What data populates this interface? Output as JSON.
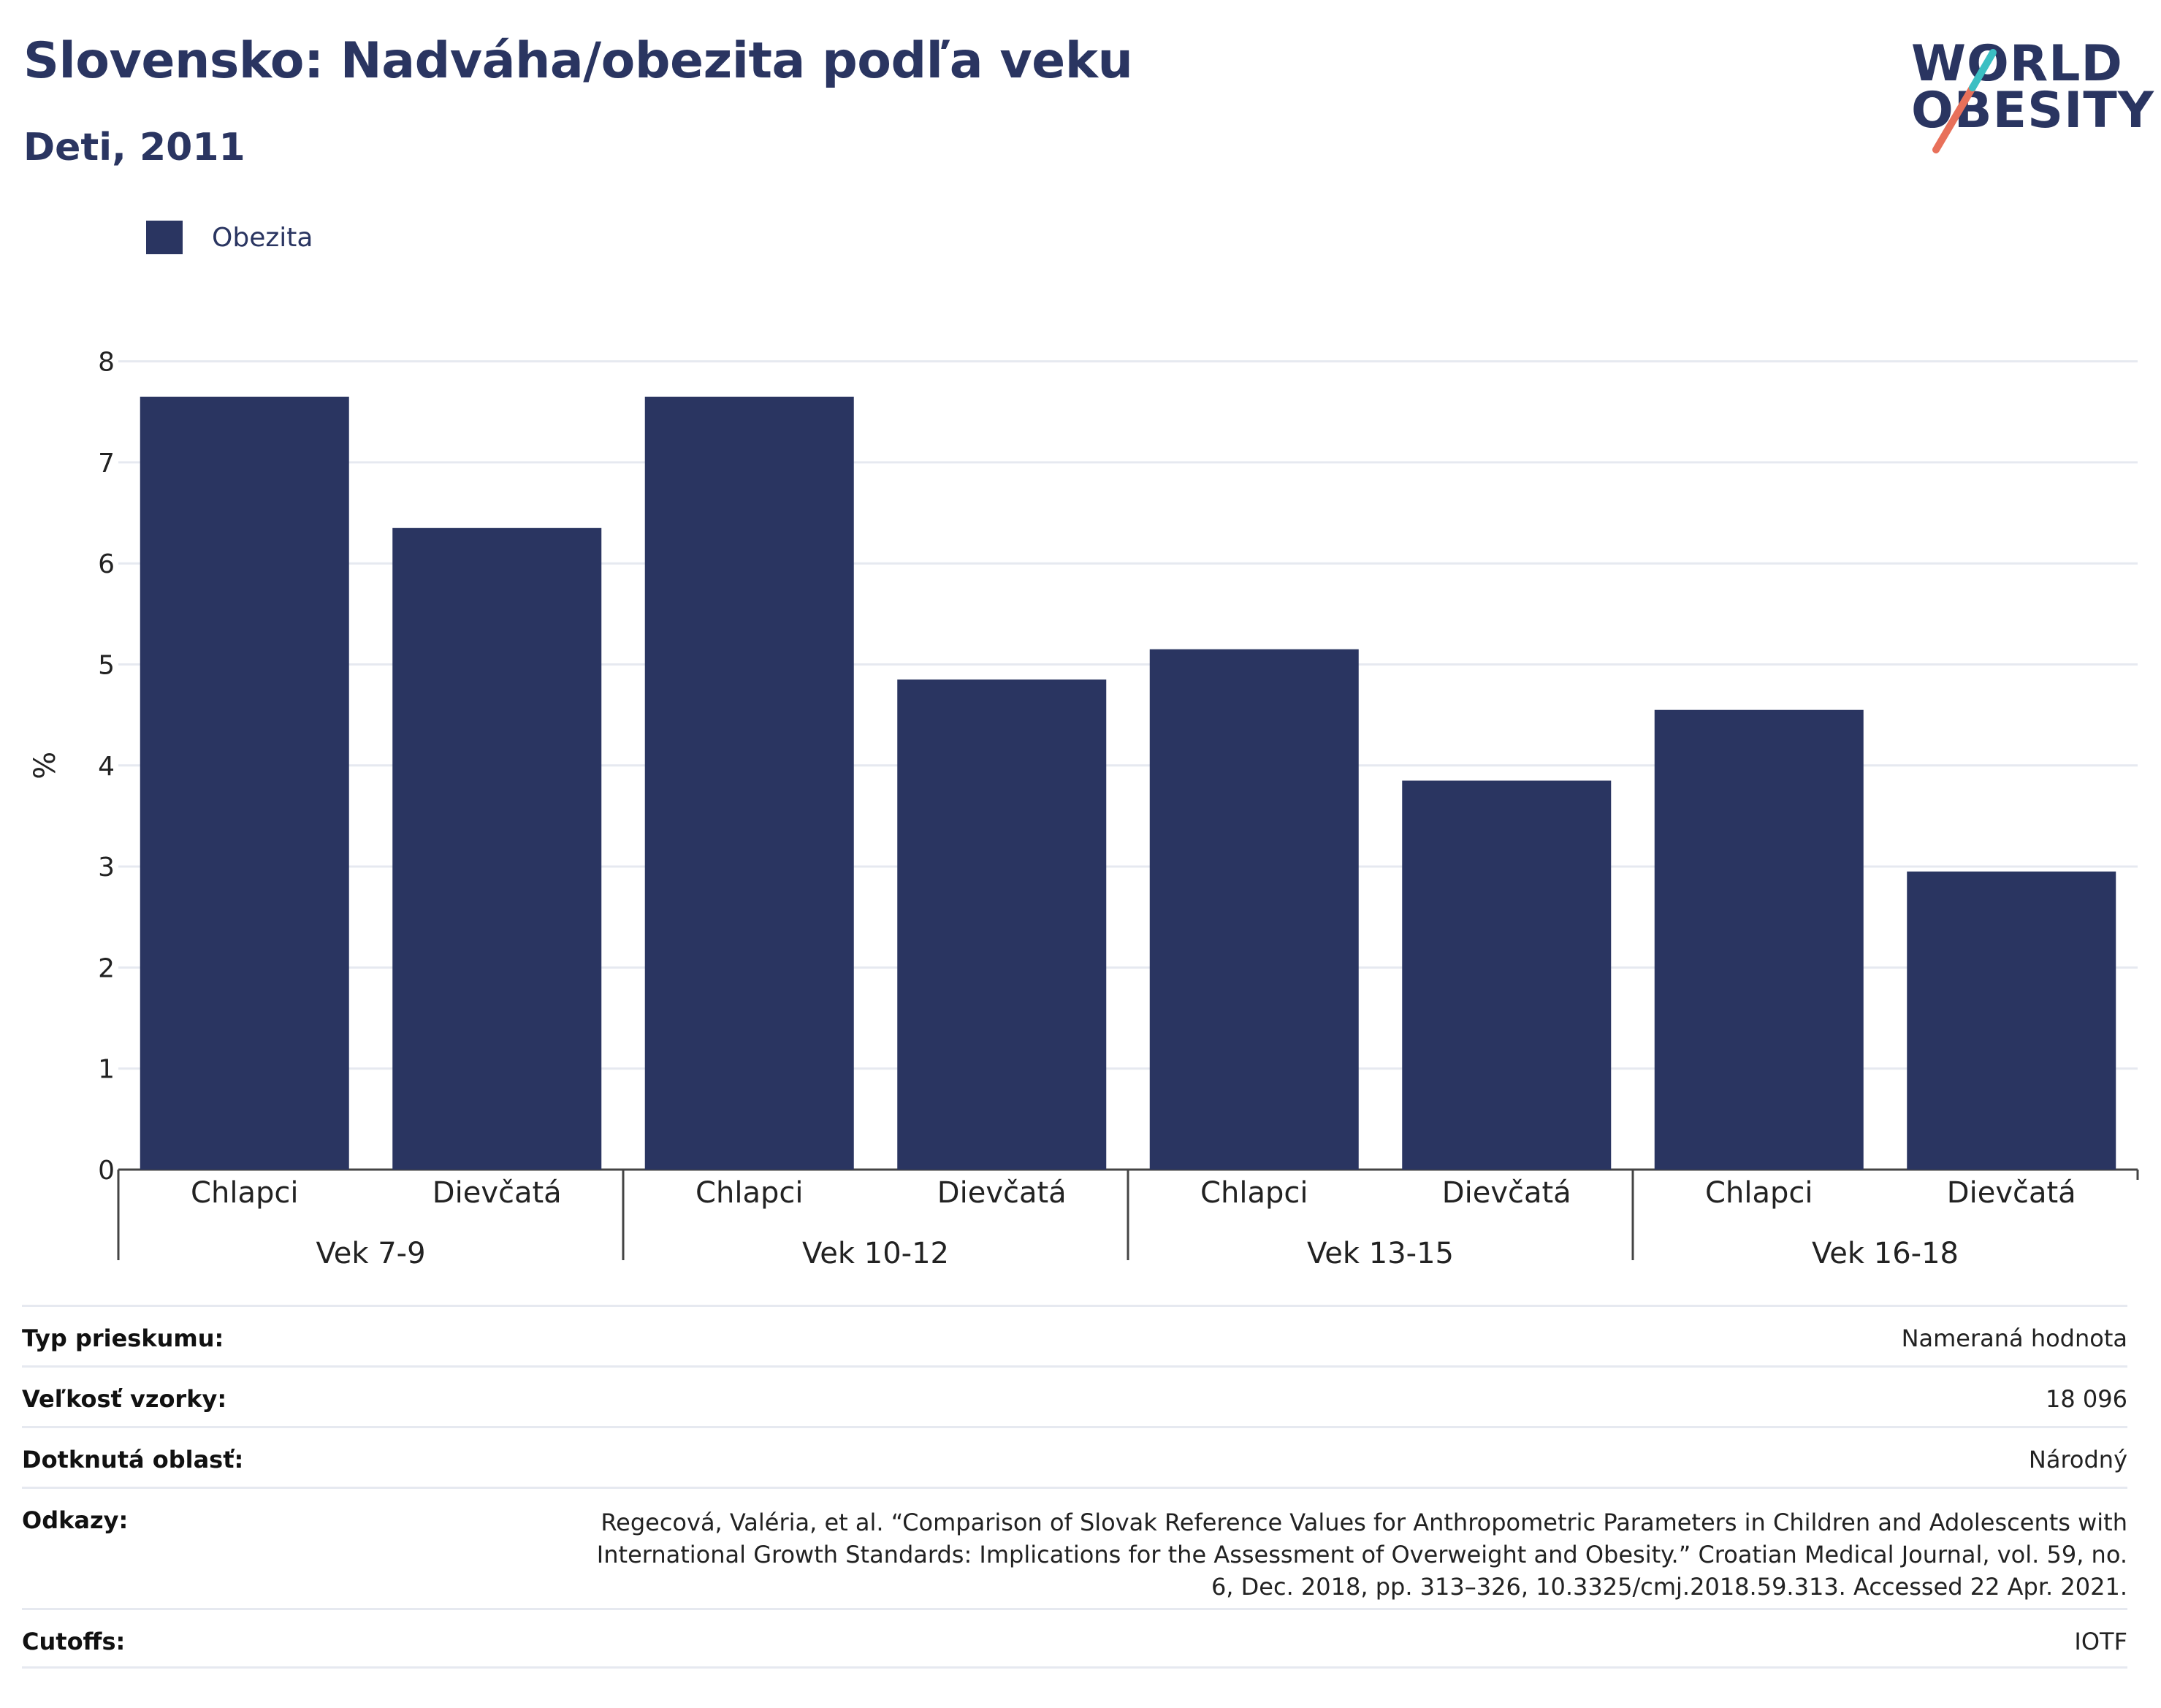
{
  "header": {
    "title": "Slovensko: Nadváha/obezita podľa veku",
    "subtitle": "Deti, 2011"
  },
  "logo": {
    "line1": "WORLD",
    "line2": "OBESITY",
    "colors": {
      "navy": "#2a3561",
      "teal": "#3bbfc3",
      "coral": "#e8705a"
    }
  },
  "legend": {
    "items": [
      {
        "label": "Obezita",
        "color": "#2a3561"
      }
    ]
  },
  "chart_data": {
    "type": "bar",
    "ylabel": "%",
    "ylim": [
      0,
      8
    ],
    "yticks": [
      0,
      1,
      2,
      3,
      4,
      5,
      6,
      7,
      8
    ],
    "grid": true,
    "legend_position": "top-left",
    "bar_color": "#2a3561",
    "groups": [
      {
        "label": "Vek 7-9",
        "categories": [
          "Chlapci",
          "Dievčatá"
        ],
        "values": [
          7.65,
          6.35
        ]
      },
      {
        "label": "Vek 10-12",
        "categories": [
          "Chlapci",
          "Dievčatá"
        ],
        "values": [
          7.65,
          4.85
        ]
      },
      {
        "label": "Vek 13-15",
        "categories": [
          "Chlapci",
          "Dievčatá"
        ],
        "values": [
          5.15,
          3.85
        ]
      },
      {
        "label": "Vek 16-18",
        "categories": [
          "Chlapci",
          "Dievčatá"
        ],
        "values": [
          4.55,
          2.95
        ]
      }
    ],
    "series": [
      {
        "name": "Obezita"
      }
    ]
  },
  "info": {
    "rows": [
      {
        "key": "Typ prieskumu:",
        "value": "Nameraná hodnota"
      },
      {
        "key": "Veľkosť vzorky:",
        "value": "18 096"
      },
      {
        "key": "Dotknutá oblasť:",
        "value": "Národný"
      },
      {
        "key": "Odkazy:",
        "value": "Regecová, Valéria, et al. “Comparison of Slovak Reference Values for Anthropometric Parameters in Children and Adolescents with International Growth Standards: Implications for the Assessment of Overweight and Obesity.” Croatian Medical Journal, vol. 59, no. 6, Dec. 2018, pp. 313–326, 10.3325/cmj.2018.59.313. Accessed 22 Apr. 2021."
      },
      {
        "key": "Cutoffs:",
        "value": "IOTF"
      }
    ]
  }
}
